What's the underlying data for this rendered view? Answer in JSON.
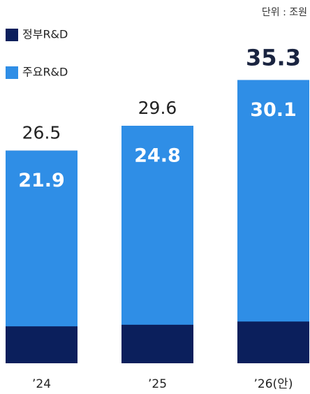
{
  "chart_data": {
    "type": "overlap-bar",
    "unit": "단위 : 조원",
    "categories": [
      "’24",
      "’25",
      "’26(안)"
    ],
    "series": [
      {
        "name": "정부R&D",
        "color": "#0b1f5c",
        "values": [
          26.5,
          29.6,
          35.3
        ]
      },
      {
        "name": "주요R&D",
        "color": "#2f8ee6",
        "values": [
          21.9,
          24.8,
          30.1
        ]
      }
    ],
    "ylim": [
      0,
      37
    ]
  }
}
